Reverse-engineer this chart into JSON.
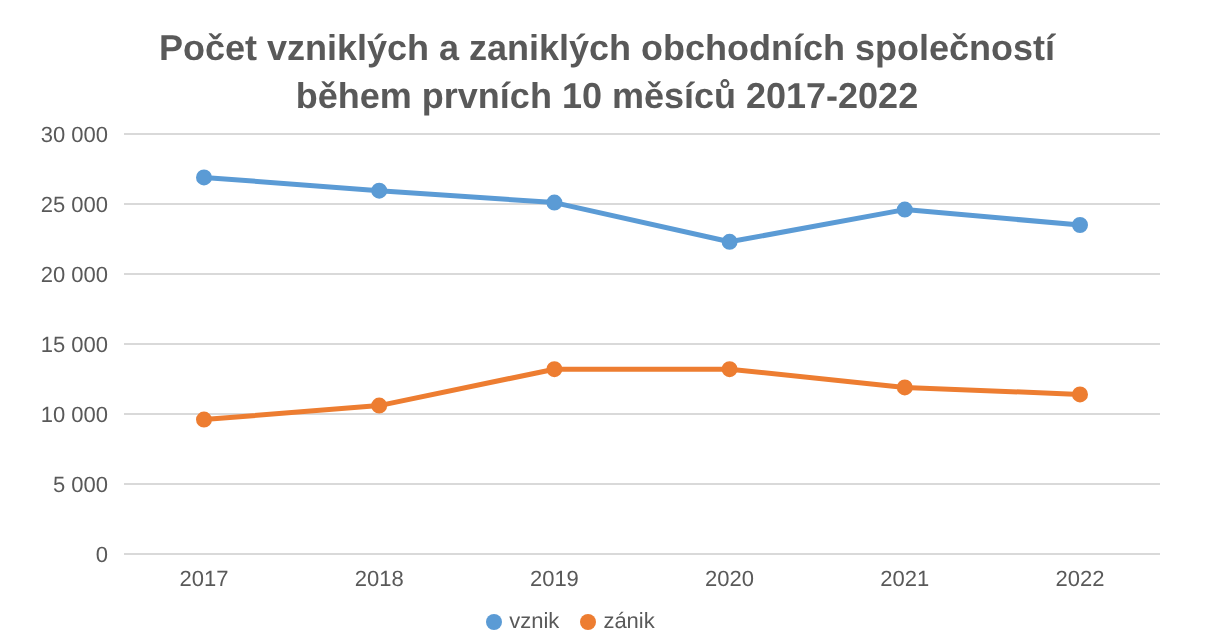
{
  "chart_data": {
    "type": "line",
    "title": "Počet vzniklých a zaniklých obchodních společností během prvních 10 měsíců 2017-2022",
    "categories": [
      "2017",
      "2018",
      "2019",
      "2020",
      "2021",
      "2022"
    ],
    "series": [
      {
        "name": "vznik",
        "color": "#5b9bd5",
        "values": [
          26900,
          25950,
          25100,
          22300,
          24600,
          23500
        ]
      },
      {
        "name": "zánik",
        "color": "#ed7d31",
        "values": [
          9600,
          10600,
          13200,
          13200,
          11900,
          11400
        ]
      }
    ],
    "ylim": [
      0,
      30000
    ],
    "yticks": [
      {
        "value": 0,
        "label": "0"
      },
      {
        "value": 5000,
        "label": "5 000"
      },
      {
        "value": 10000,
        "label": "10 000"
      },
      {
        "value": 15000,
        "label": "15 000"
      },
      {
        "value": 20000,
        "label": "20 000"
      },
      {
        "value": 25000,
        "label": "25 000"
      },
      {
        "value": 30000,
        "label": "30 000"
      }
    ],
    "grid": "y",
    "legend": "bottom",
    "marker": "circle",
    "line_style": "solid"
  }
}
